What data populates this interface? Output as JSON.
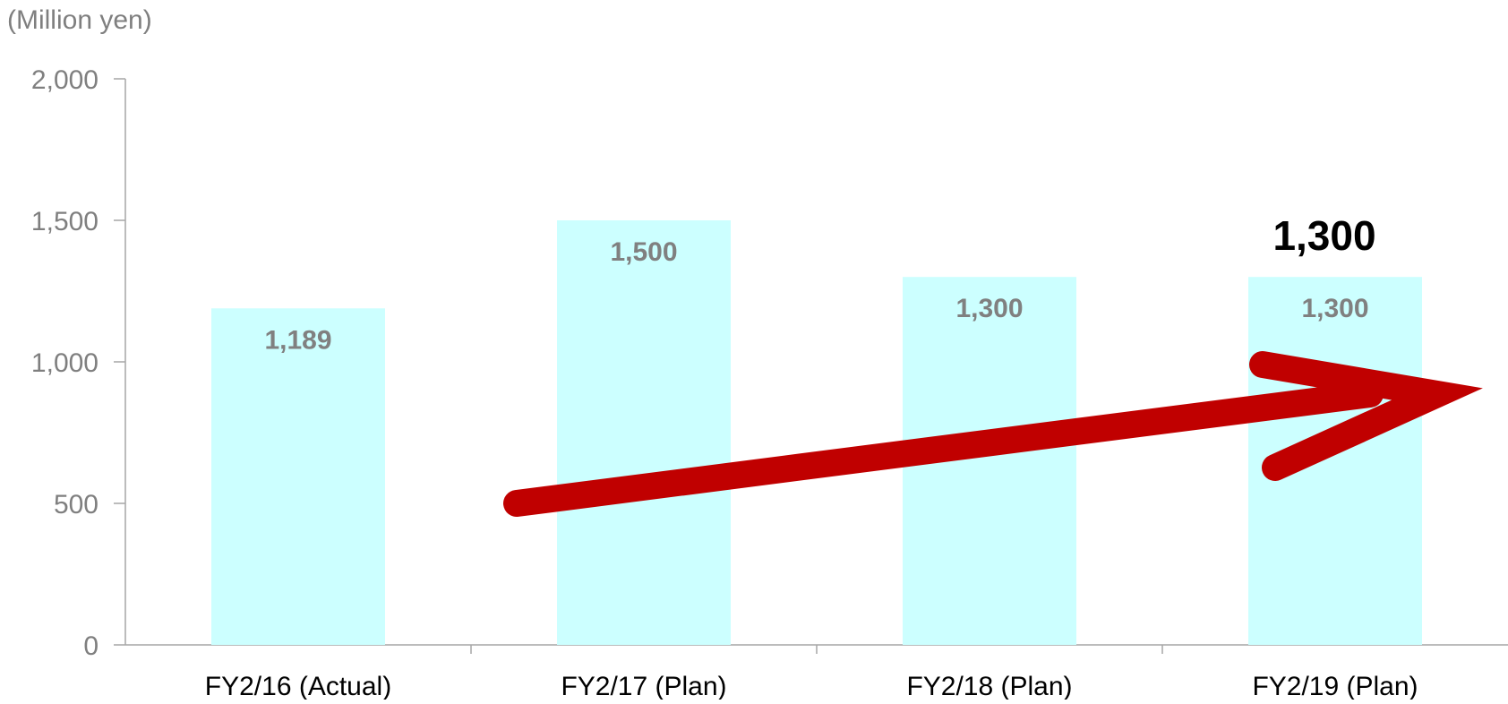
{
  "chart_data": {
    "type": "bar",
    "unit_label": "(Million yen)",
    "categories": [
      "FY2/16 (Actual)",
      "FY2/17 (Plan)",
      "FY2/18 (Plan)",
      "FY2/19 (Plan)"
    ],
    "values": [
      1189,
      1500,
      1300,
      1300
    ],
    "data_labels": [
      "1,189",
      "1,500",
      "1,300",
      "1,300"
    ],
    "highlight_label": "1,300",
    "ylim": [
      0,
      2000
    ],
    "y_ticks": [
      {
        "value": 0,
        "label": "0"
      },
      {
        "value": 500,
        "label": "500"
      },
      {
        "value": 1000,
        "label": "1,000"
      },
      {
        "value": 1500,
        "label": "1,500"
      },
      {
        "value": 2000,
        "label": "2,000"
      }
    ],
    "grid": false,
    "legend": "none",
    "annotation": "upward trend arrow",
    "colors": {
      "bar": "#ccffff",
      "axis": "#a6a6a6",
      "tick_label": "#7f7f7f",
      "data_label": "#808080",
      "highlight_label": "#000000",
      "arrow": "#c00000",
      "category_label": "#000000"
    }
  }
}
